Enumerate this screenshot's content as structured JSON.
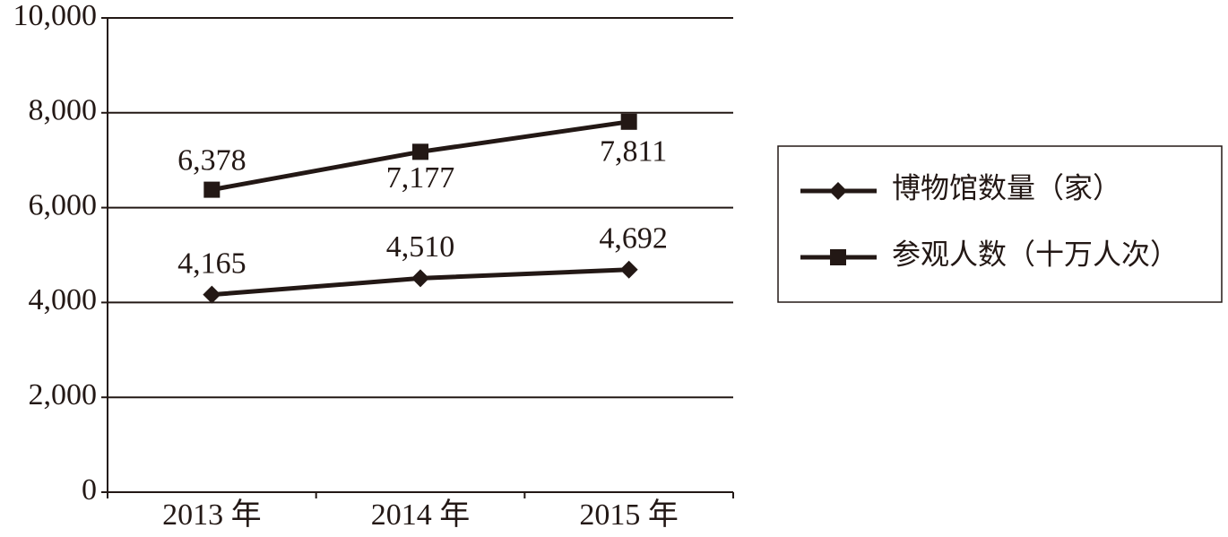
{
  "chart_data": {
    "type": "line",
    "categories": [
      "2013 年",
      "2014 年",
      "2015 年"
    ],
    "series": [
      {
        "name": "博物馆数量（家）",
        "color": "#231815",
        "marker": "diamond",
        "values": [
          4165,
          4510,
          4692
        ],
        "value_labels": [
          "4,165",
          "4,510",
          "4,692"
        ]
      },
      {
        "name": "参观人数（十万人次）",
        "color": "#231815",
        "marker": "square",
        "values": [
          6378,
          7177,
          7811
        ],
        "value_labels": [
          "6,378",
          "7,177",
          "7,811"
        ]
      }
    ],
    "ylim": [
      0,
      10000
    ],
    "yticks": [
      0,
      {
        "value": 2000,
        "label": "2,000"
      },
      {
        "value": 4000,
        "label": "4,000"
      },
      {
        "value": 6000,
        "label": "6,000"
      },
      {
        "value": 8000,
        "label": "8,000"
      },
      {
        "value": 10000,
        "label": "10,000"
      }
    ],
    "grid": true,
    "legend": "right"
  }
}
